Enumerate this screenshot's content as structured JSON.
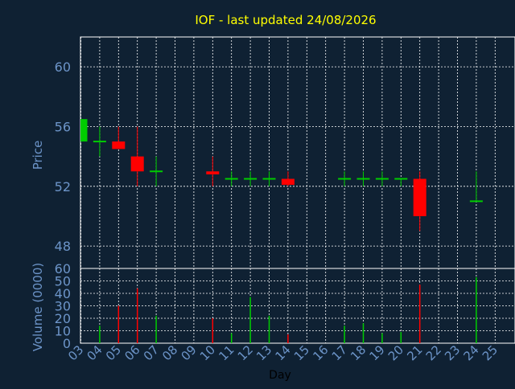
{
  "colors": {
    "background": "#0f2133",
    "title": "#ffff00",
    "axis_text": "#6c94c8",
    "grid": "#ffffff",
    "up": "#00cc00",
    "down": "#ff0000",
    "frame": "#ffffff"
  },
  "chart_data": [
    {
      "type": "candlestick",
      "title": "IOF - last updated 24/08/2026",
      "ylabel": "Price",
      "ylim": [
        46.5,
        62.0
      ],
      "yticks": [
        48,
        52,
        56,
        60
      ],
      "grid": true,
      "candles": [
        {
          "day": "03",
          "open": 55.0,
          "close": 56.5,
          "high": 56.5,
          "low": 55.0
        },
        {
          "day": "04",
          "open": 55.0,
          "close": 55.0,
          "high": 56.0,
          "low": 54.0
        },
        {
          "day": "05",
          "open": 55.0,
          "close": 54.5,
          "high": 56.0,
          "low": 54.5
        },
        {
          "day": "06",
          "open": 54.0,
          "close": 53.0,
          "high": 56.0,
          "low": 52.0
        },
        {
          "day": "07",
          "open": 53.0,
          "close": 53.0,
          "high": 54.0,
          "low": 52.0
        },
        {
          "day": "10",
          "open": 53.0,
          "close": 52.8,
          "high": 54.0,
          "low": 52.0
        },
        {
          "day": "11",
          "open": 52.5,
          "close": 52.5,
          "high": 53.0,
          "low": 52.0
        },
        {
          "day": "12",
          "open": 52.5,
          "close": 52.5,
          "high": 53.0,
          "low": 52.0
        },
        {
          "day": "13",
          "open": 52.5,
          "close": 52.5,
          "high": 53.0,
          "low": 52.0
        },
        {
          "day": "14",
          "open": 52.5,
          "close": 52.1,
          "high": 53.0,
          "low": 52.0
        },
        {
          "day": "17",
          "open": 52.5,
          "close": 52.5,
          "high": 53.0,
          "low": 52.0
        },
        {
          "day": "18",
          "open": 52.5,
          "close": 52.5,
          "high": 53.0,
          "low": 52.0
        },
        {
          "day": "19",
          "open": 52.5,
          "close": 52.5,
          "high": 53.0,
          "low": 52.0
        },
        {
          "day": "20",
          "open": 52.5,
          "close": 52.5,
          "high": 52.5,
          "low": 52.0
        },
        {
          "day": "21",
          "open": 52.5,
          "close": 50.0,
          "high": 53.0,
          "low": 49.0
        },
        {
          "day": "24",
          "open": 51.0,
          "close": 51.0,
          "high": 53.0,
          "low": 51.0
        }
      ]
    },
    {
      "type": "bar",
      "ylabel": "Volume (0000)",
      "xlabel": "Day",
      "ylim": [
        0,
        60
      ],
      "yticks": [
        0,
        10,
        20,
        30,
        40,
        50,
        60
      ],
      "categories": [
        "03",
        "04",
        "05",
        "06",
        "07",
        "08",
        "09",
        "10",
        "11",
        "12",
        "13",
        "14",
        "15",
        "16",
        "17",
        "18",
        "19",
        "20",
        "21",
        "22",
        "23",
        "24",
        "25"
      ],
      "volumes": [
        {
          "day": "04",
          "value": 14,
          "direction": "up"
        },
        {
          "day": "05",
          "value": 30,
          "direction": "down"
        },
        {
          "day": "06",
          "value": 44,
          "direction": "down"
        },
        {
          "day": "07",
          "value": 22,
          "direction": "up"
        },
        {
          "day": "10",
          "value": 20,
          "direction": "down"
        },
        {
          "day": "11",
          "value": 8,
          "direction": "up"
        },
        {
          "day": "12",
          "value": 37,
          "direction": "up"
        },
        {
          "day": "13",
          "value": 22,
          "direction": "up"
        },
        {
          "day": "14",
          "value": 7,
          "direction": "down"
        },
        {
          "day": "17",
          "value": 14,
          "direction": "up"
        },
        {
          "day": "18",
          "value": 16,
          "direction": "up"
        },
        {
          "day": "19",
          "value": 8,
          "direction": "up"
        },
        {
          "day": "20",
          "value": 9,
          "direction": "up"
        },
        {
          "day": "21",
          "value": 47,
          "direction": "down"
        },
        {
          "day": "24",
          "value": 53,
          "direction": "up"
        }
      ]
    }
  ]
}
